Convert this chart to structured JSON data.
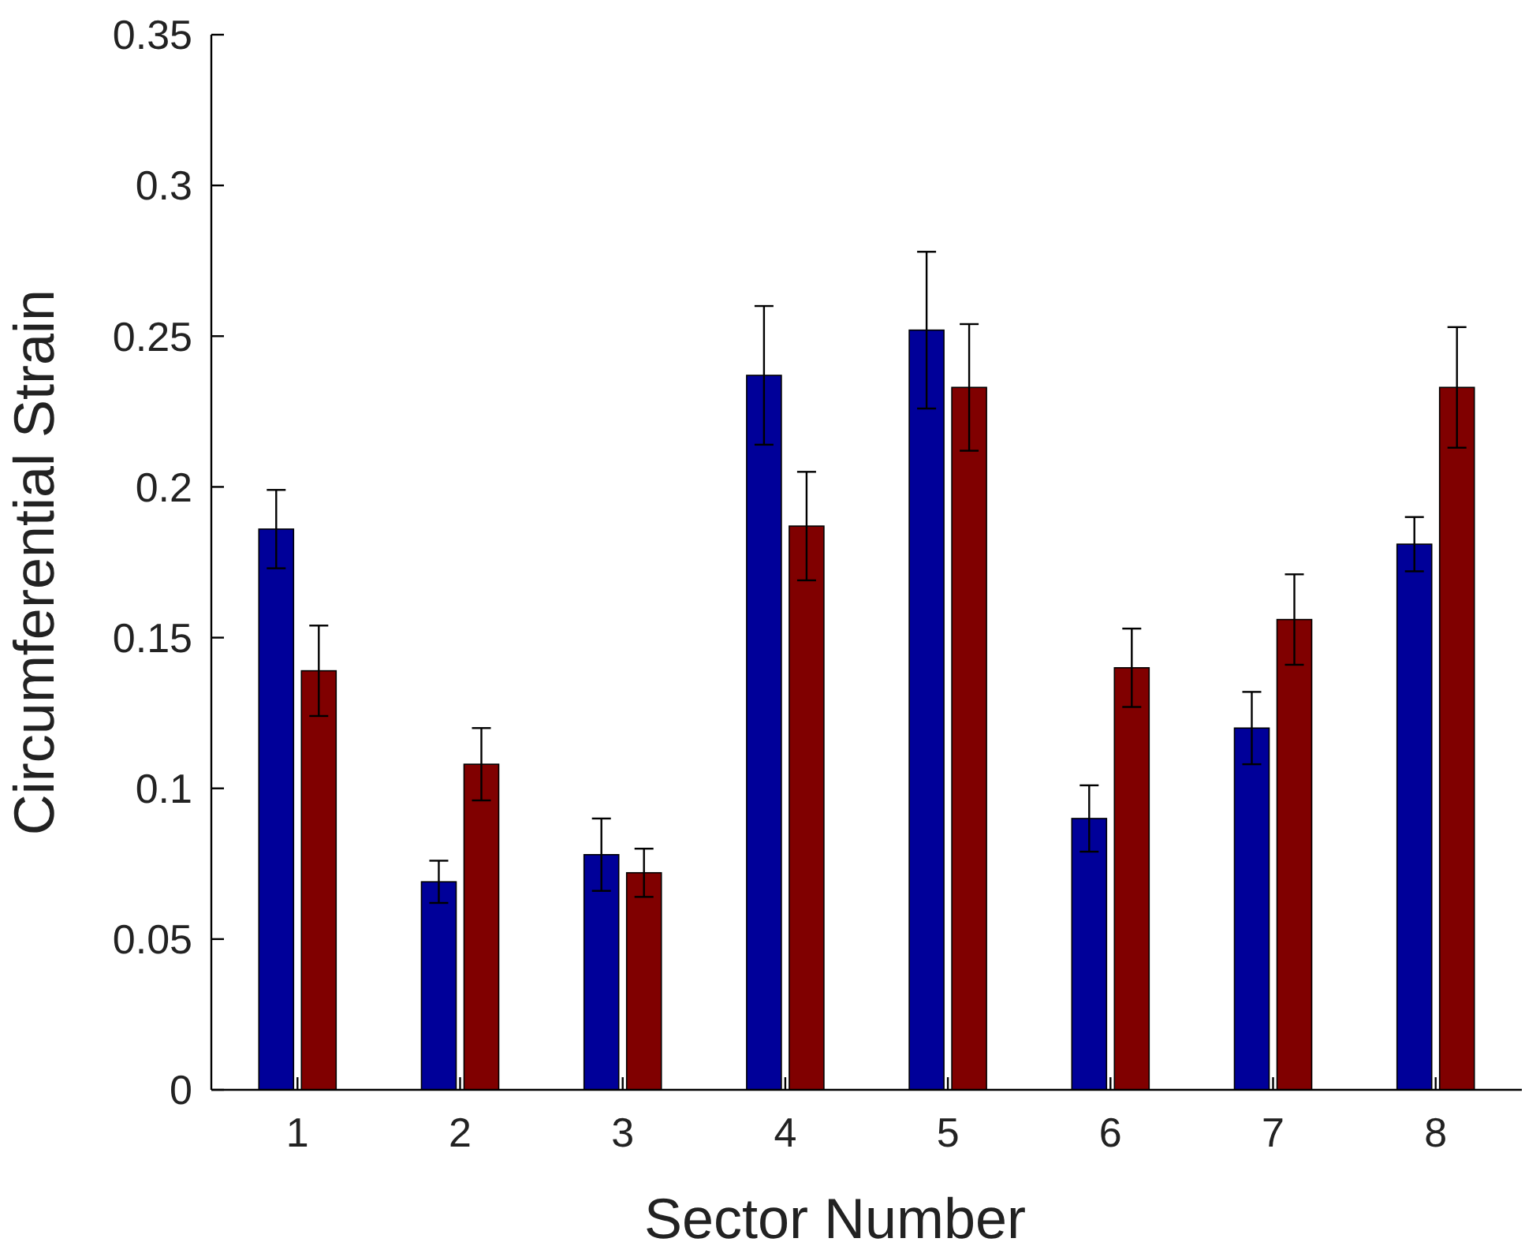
{
  "chart_data": {
    "type": "bar",
    "xlabel": "Sector Number",
    "ylabel": "Circumferential Strain",
    "categories": [
      "1",
      "2",
      "3",
      "4",
      "5",
      "6",
      "7",
      "8"
    ],
    "series": [
      {
        "color": "#000099",
        "values": [
          0.186,
          0.069,
          0.078,
          0.237,
          0.252,
          0.09,
          0.12,
          0.181
        ],
        "errors": [
          0.013,
          0.007,
          0.012,
          0.023,
          0.026,
          0.011,
          0.012,
          0.009
        ]
      },
      {
        "color": "#800000",
        "values": [
          0.139,
          0.108,
          0.072,
          0.187,
          0.233,
          0.14,
          0.156,
          0.233
        ],
        "errors": [
          0.015,
          0.012,
          0.008,
          0.018,
          0.021,
          0.013,
          0.015,
          0.02
        ]
      }
    ],
    "ylim": [
      0,
      0.35
    ],
    "yticks": [
      0,
      0.05,
      0.1,
      0.15,
      0.2,
      0.25,
      0.3,
      0.35
    ],
    "grid": false
  }
}
